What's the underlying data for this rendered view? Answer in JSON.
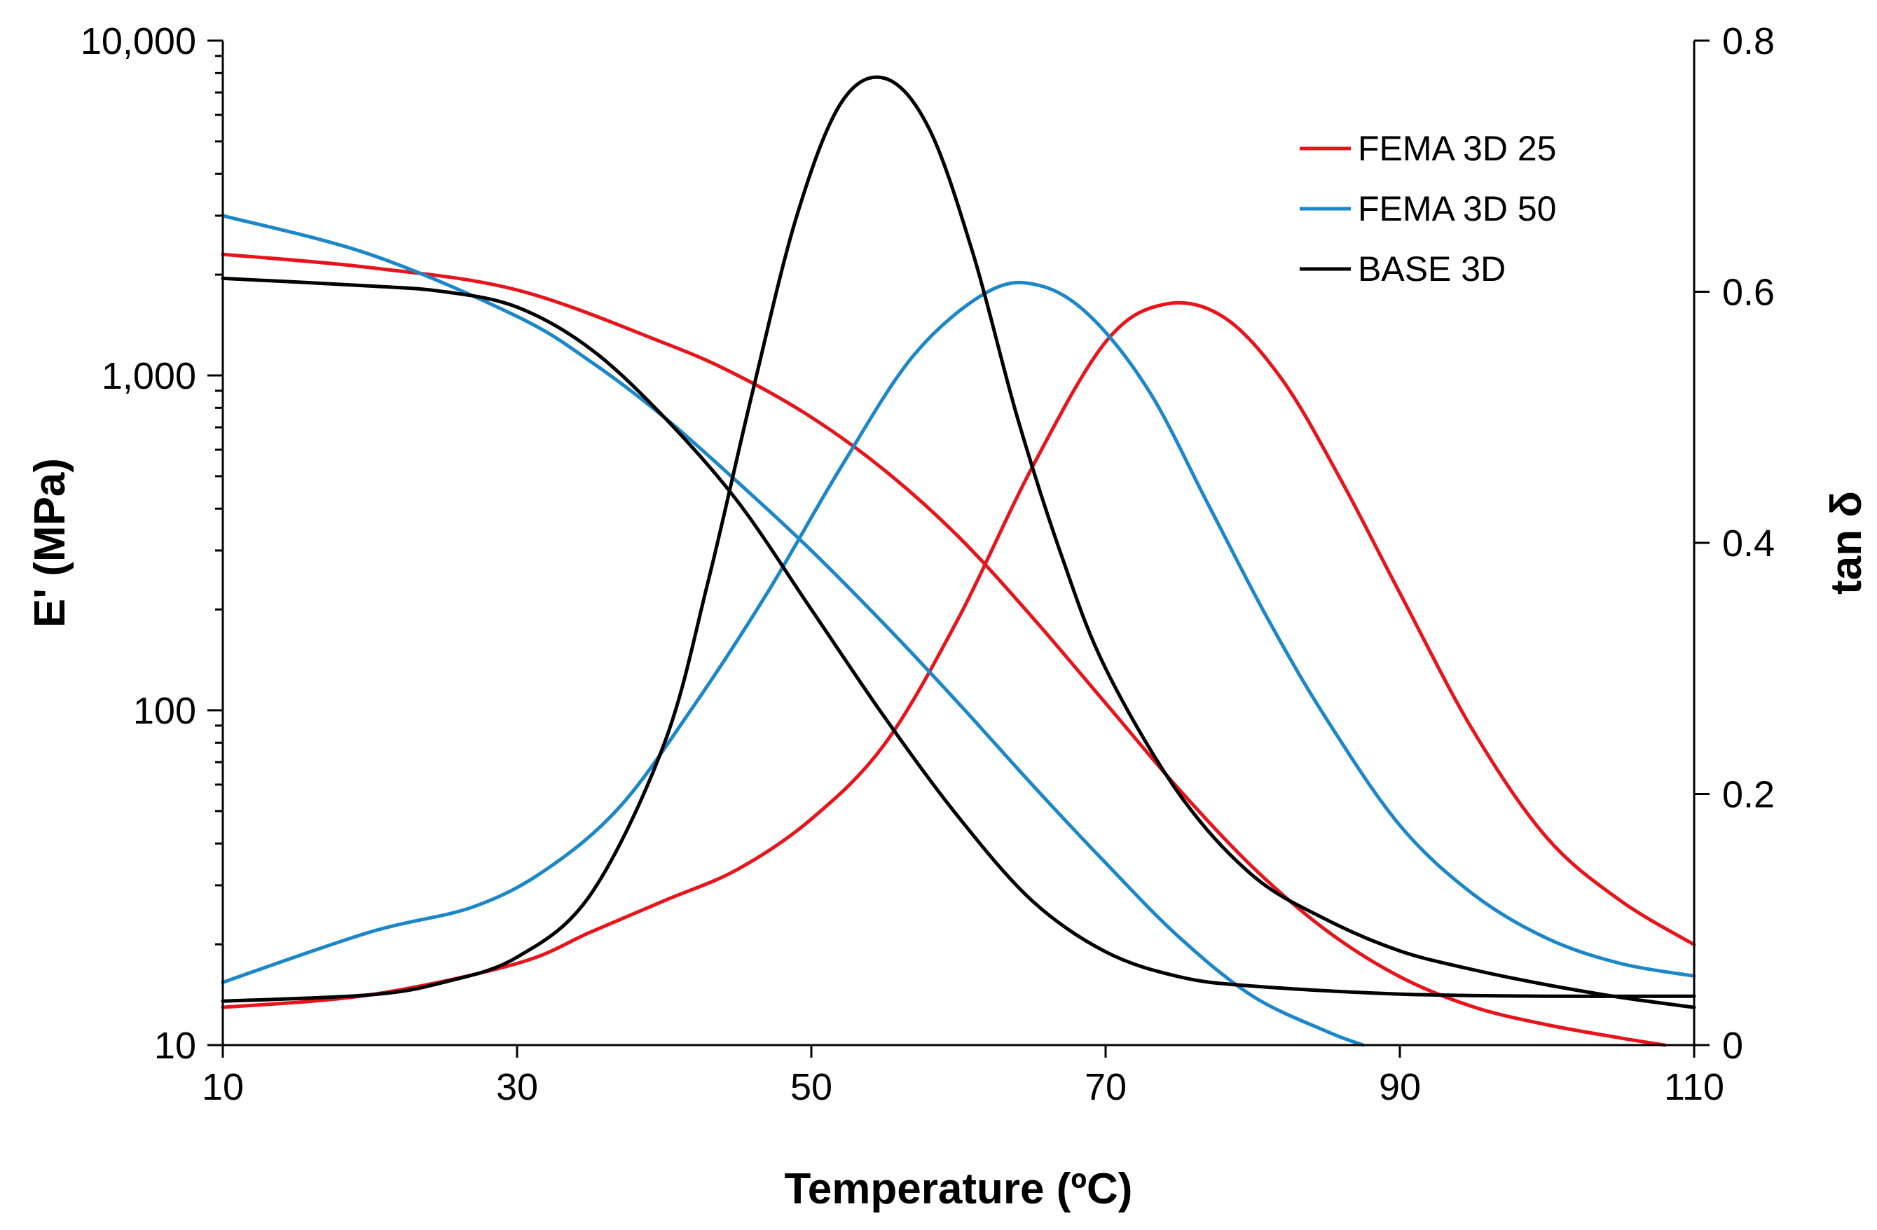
{
  "chart_data": {
    "type": "line",
    "xlabel": "Temperature (ºC)",
    "ylabel_left": "E' (MPa)",
    "ylabel_right": "tan δ",
    "xlim": [
      10,
      110
    ],
    "ylim_left": [
      10,
      10000
    ],
    "ylim_right": [
      0,
      0.8
    ],
    "left_scale": "log",
    "grid": false,
    "legend_position": "top-right",
    "x_ticks": [
      "10",
      "30",
      "50",
      "70",
      "90",
      "110"
    ],
    "y_left_ticks": [
      "10",
      "100",
      "1,000",
      "10,000"
    ],
    "y_right_ticks": [
      "0",
      "0.2",
      "0.4",
      "0.6",
      "0.8"
    ],
    "series": [
      {
        "name": "FEMA 3D 25",
        "color": "#e8141c",
        "storage_modulus": {
          "x": [
            10,
            20,
            30,
            40,
            45,
            50,
            55,
            60,
            65,
            70,
            75,
            80,
            85,
            90,
            95,
            100,
            105,
            108
          ],
          "y": [
            2300,
            2100,
            1800,
            1250,
            1000,
            750,
            520,
            330,
            190,
            105,
            58,
            34,
            22,
            16,
            13,
            11.5,
            10.5,
            10
          ]
        },
        "tan_delta": {
          "x": [
            10,
            20,
            30,
            35,
            40,
            45,
            50,
            55,
            60,
            65,
            70,
            74,
            78,
            82,
            86,
            90,
            95,
            100,
            105,
            110
          ],
          "y": [
            0.03,
            0.04,
            0.065,
            0.09,
            0.115,
            0.14,
            0.18,
            0.24,
            0.34,
            0.46,
            0.56,
            0.59,
            0.58,
            0.53,
            0.45,
            0.36,
            0.25,
            0.165,
            0.115,
            0.08
          ]
        }
      },
      {
        "name": "FEMA 3D 50",
        "color": "#1b87c9",
        "storage_modulus": {
          "x": [
            10,
            20,
            30,
            35,
            40,
            45,
            50,
            55,
            60,
            65,
            70,
            75,
            80,
            85,
            87.5
          ],
          "y": [
            3000,
            2300,
            1500,
            1100,
            750,
            480,
            300,
            180,
            105,
            60,
            35,
            21,
            14,
            11,
            10
          ]
        },
        "tan_delta": {
          "x": [
            10,
            20,
            27,
            32,
            37,
            42,
            47,
            52,
            57,
            62,
            65.5,
            69,
            73,
            77,
            81,
            85,
            90,
            95,
            100,
            105,
            110
          ],
          "y": [
            0.05,
            0.09,
            0.11,
            0.14,
            0.19,
            0.27,
            0.36,
            0.46,
            0.55,
            0.6,
            0.605,
            0.58,
            0.52,
            0.43,
            0.34,
            0.26,
            0.175,
            0.12,
            0.085,
            0.065,
            0.055
          ]
        }
      },
      {
        "name": "BASE 3D",
        "color": "#000000",
        "storage_modulus": {
          "x": [
            10,
            20,
            25,
            30,
            35,
            40,
            45,
            50,
            55,
            60,
            65,
            70,
            75,
            80,
            90,
            100,
            110
          ],
          "y": [
            1950,
            1850,
            1780,
            1600,
            1200,
            750,
            420,
            200,
            95,
            48,
            27,
            19,
            16,
            15,
            14.2,
            14,
            14
          ]
        },
        "tan_delta": {
          "x": [
            10,
            20,
            25,
            30,
            35,
            40,
            43,
            46,
            49,
            52,
            55,
            58,
            61,
            64,
            67,
            70,
            75,
            80,
            85,
            90,
            95,
            100,
            105,
            110
          ],
          "y": [
            0.035,
            0.04,
            0.05,
            0.07,
            0.12,
            0.24,
            0.37,
            0.52,
            0.66,
            0.75,
            0.77,
            0.73,
            0.63,
            0.5,
            0.39,
            0.3,
            0.2,
            0.135,
            0.1,
            0.075,
            0.06,
            0.048,
            0.038,
            0.03
          ]
        }
      }
    ]
  }
}
